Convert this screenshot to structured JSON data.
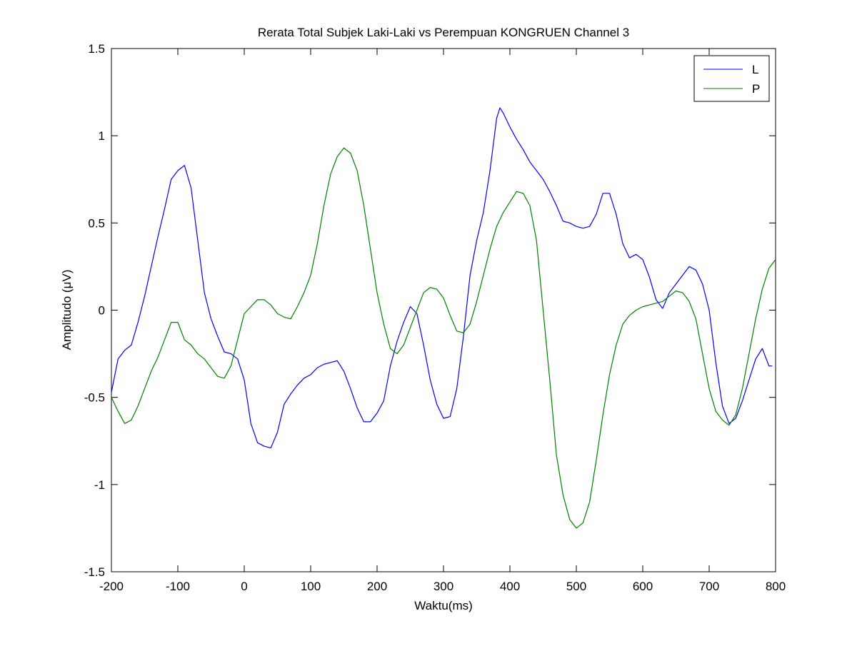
{
  "chart_data": {
    "type": "line",
    "title": "Rerata Total Subjek Laki-Laki vs Perempuan KONGRUEN Channel 3",
    "xlabel": "Waktu(ms)",
    "ylabel": "Amplitudo (μV)",
    "xlim": [
      -200,
      800
    ],
    "ylim": [
      -1.5,
      1.5
    ],
    "xticks": [
      -200,
      -100,
      0,
      100,
      200,
      300,
      400,
      500,
      600,
      700,
      800
    ],
    "yticks": [
      -1.5,
      -1,
      -0.5,
      0,
      0.5,
      1,
      1.5
    ],
    "xtick_labels": [
      "-200",
      "-100",
      "0",
      "100",
      "200",
      "300",
      "400",
      "500",
      "600",
      "700",
      "800"
    ],
    "ytick_labels": [
      "-1.5",
      "-1",
      "-0.5",
      "0",
      "0.5",
      "1",
      "1.5"
    ],
    "grid": false,
    "legend_position": "top-right",
    "series": [
      {
        "name": "L",
        "color": "#0000ff",
        "points": [
          [
            -200,
            -0.47
          ],
          [
            -190,
            -0.28
          ],
          [
            -180,
            -0.23
          ],
          [
            -170,
            -0.2
          ],
          [
            -160,
            -0.07
          ],
          [
            -150,
            0.08
          ],
          [
            -140,
            0.25
          ],
          [
            -130,
            0.42
          ],
          [
            -120,
            0.58
          ],
          [
            -110,
            0.75
          ],
          [
            -100,
            0.8
          ],
          [
            -90,
            0.83
          ],
          [
            -80,
            0.7
          ],
          [
            -70,
            0.4
          ],
          [
            -60,
            0.1
          ],
          [
            -50,
            -0.05
          ],
          [
            -40,
            -0.15
          ],
          [
            -30,
            -0.24
          ],
          [
            -20,
            -0.25
          ],
          [
            -10,
            -0.28
          ],
          [
            0,
            -0.4
          ],
          [
            10,
            -0.65
          ],
          [
            20,
            -0.76
          ],
          [
            30,
            -0.78
          ],
          [
            40,
            -0.79
          ],
          [
            50,
            -0.7
          ],
          [
            60,
            -0.54
          ],
          [
            70,
            -0.48
          ],
          [
            80,
            -0.43
          ],
          [
            90,
            -0.39
          ],
          [
            100,
            -0.37
          ],
          [
            110,
            -0.33
          ],
          [
            120,
            -0.31
          ],
          [
            130,
            -0.3
          ],
          [
            140,
            -0.29
          ],
          [
            150,
            -0.35
          ],
          [
            160,
            -0.45
          ],
          [
            170,
            -0.56
          ],
          [
            180,
            -0.64
          ],
          [
            190,
            -0.64
          ],
          [
            200,
            -0.59
          ],
          [
            210,
            -0.52
          ],
          [
            220,
            -0.32
          ],
          [
            230,
            -0.18
          ],
          [
            240,
            -0.07
          ],
          [
            250,
            0.02
          ],
          [
            260,
            -0.02
          ],
          [
            270,
            -0.2
          ],
          [
            280,
            -0.4
          ],
          [
            290,
            -0.54
          ],
          [
            300,
            -0.62
          ],
          [
            310,
            -0.61
          ],
          [
            320,
            -0.45
          ],
          [
            330,
            -0.15
          ],
          [
            340,
            0.2
          ],
          [
            350,
            0.4
          ],
          [
            360,
            0.56
          ],
          [
            370,
            0.8
          ],
          [
            380,
            1.1
          ],
          [
            385,
            1.16
          ],
          [
            390,
            1.13
          ],
          [
            400,
            1.05
          ],
          [
            410,
            0.98
          ],
          [
            420,
            0.92
          ],
          [
            430,
            0.85
          ],
          [
            440,
            0.8
          ],
          [
            450,
            0.75
          ],
          [
            460,
            0.68
          ],
          [
            470,
            0.6
          ],
          [
            480,
            0.51
          ],
          [
            490,
            0.5
          ],
          [
            500,
            0.48
          ],
          [
            510,
            0.47
          ],
          [
            520,
            0.48
          ],
          [
            530,
            0.55
          ],
          [
            540,
            0.67
          ],
          [
            550,
            0.67
          ],
          [
            560,
            0.55
          ],
          [
            570,
            0.38
          ],
          [
            580,
            0.3
          ],
          [
            590,
            0.32
          ],
          [
            600,
            0.29
          ],
          [
            610,
            0.19
          ],
          [
            620,
            0.06
          ],
          [
            630,
            0.01
          ],
          [
            640,
            0.1
          ],
          [
            650,
            0.15
          ],
          [
            660,
            0.2
          ],
          [
            670,
            0.25
          ],
          [
            680,
            0.23
          ],
          [
            690,
            0.15
          ],
          [
            700,
            0.0
          ],
          [
            710,
            -0.3
          ],
          [
            720,
            -0.55
          ],
          [
            730,
            -0.65
          ],
          [
            740,
            -0.62
          ],
          [
            750,
            -0.52
          ],
          [
            760,
            -0.4
          ],
          [
            770,
            -0.28
          ],
          [
            780,
            -0.22
          ],
          [
            790,
            -0.32
          ],
          [
            795,
            -0.32
          ]
        ]
      },
      {
        "name": "P",
        "color": "#008000",
        "points": [
          [
            -200,
            -0.5
          ],
          [
            -190,
            -0.58
          ],
          [
            -180,
            -0.65
          ],
          [
            -170,
            -0.63
          ],
          [
            -160,
            -0.55
          ],
          [
            -150,
            -0.45
          ],
          [
            -140,
            -0.35
          ],
          [
            -130,
            -0.27
          ],
          [
            -120,
            -0.17
          ],
          [
            -110,
            -0.07
          ],
          [
            -100,
            -0.07
          ],
          [
            -90,
            -0.17
          ],
          [
            -80,
            -0.2
          ],
          [
            -70,
            -0.25
          ],
          [
            -60,
            -0.28
          ],
          [
            -50,
            -0.33
          ],
          [
            -40,
            -0.38
          ],
          [
            -30,
            -0.39
          ],
          [
            -20,
            -0.32
          ],
          [
            -10,
            -0.17
          ],
          [
            0,
            -0.02
          ],
          [
            10,
            0.02
          ],
          [
            20,
            0.06
          ],
          [
            30,
            0.06
          ],
          [
            40,
            0.03
          ],
          [
            50,
            -0.02
          ],
          [
            60,
            -0.04
          ],
          [
            70,
            -0.05
          ],
          [
            80,
            0.02
          ],
          [
            90,
            0.1
          ],
          [
            100,
            0.2
          ],
          [
            110,
            0.38
          ],
          [
            120,
            0.6
          ],
          [
            130,
            0.78
          ],
          [
            140,
            0.88
          ],
          [
            150,
            0.93
          ],
          [
            160,
            0.9
          ],
          [
            170,
            0.8
          ],
          [
            180,
            0.6
          ],
          [
            190,
            0.35
          ],
          [
            200,
            0.1
          ],
          [
            210,
            -0.08
          ],
          [
            220,
            -0.22
          ],
          [
            230,
            -0.25
          ],
          [
            240,
            -0.2
          ],
          [
            250,
            -0.1
          ],
          [
            260,
            0.0
          ],
          [
            270,
            0.1
          ],
          [
            280,
            0.13
          ],
          [
            290,
            0.12
          ],
          [
            300,
            0.07
          ],
          [
            310,
            -0.03
          ],
          [
            320,
            -0.12
          ],
          [
            330,
            -0.13
          ],
          [
            340,
            -0.08
          ],
          [
            350,
            0.05
          ],
          [
            360,
            0.2
          ],
          [
            370,
            0.35
          ],
          [
            380,
            0.48
          ],
          [
            390,
            0.56
          ],
          [
            400,
            0.62
          ],
          [
            410,
            0.68
          ],
          [
            420,
            0.67
          ],
          [
            430,
            0.6
          ],
          [
            440,
            0.4
          ],
          [
            450,
            0.0
          ],
          [
            460,
            -0.4
          ],
          [
            470,
            -0.83
          ],
          [
            480,
            -1.06
          ],
          [
            490,
            -1.2
          ],
          [
            500,
            -1.25
          ],
          [
            510,
            -1.22
          ],
          [
            520,
            -1.1
          ],
          [
            530,
            -0.86
          ],
          [
            540,
            -0.6
          ],
          [
            550,
            -0.37
          ],
          [
            560,
            -0.2
          ],
          [
            570,
            -0.08
          ],
          [
            580,
            -0.03
          ],
          [
            590,
            0.0
          ],
          [
            600,
            0.02
          ],
          [
            610,
            0.03
          ],
          [
            620,
            0.04
          ],
          [
            630,
            0.05
          ],
          [
            640,
            0.08
          ],
          [
            650,
            0.11
          ],
          [
            660,
            0.1
          ],
          [
            670,
            0.05
          ],
          [
            680,
            -0.05
          ],
          [
            690,
            -0.25
          ],
          [
            700,
            -0.45
          ],
          [
            710,
            -0.58
          ],
          [
            720,
            -0.63
          ],
          [
            730,
            -0.66
          ],
          [
            740,
            -0.6
          ],
          [
            750,
            -0.45
          ],
          [
            760,
            -0.25
          ],
          [
            770,
            -0.05
          ],
          [
            780,
            0.12
          ],
          [
            790,
            0.24
          ],
          [
            800,
            0.29
          ]
        ]
      }
    ]
  }
}
